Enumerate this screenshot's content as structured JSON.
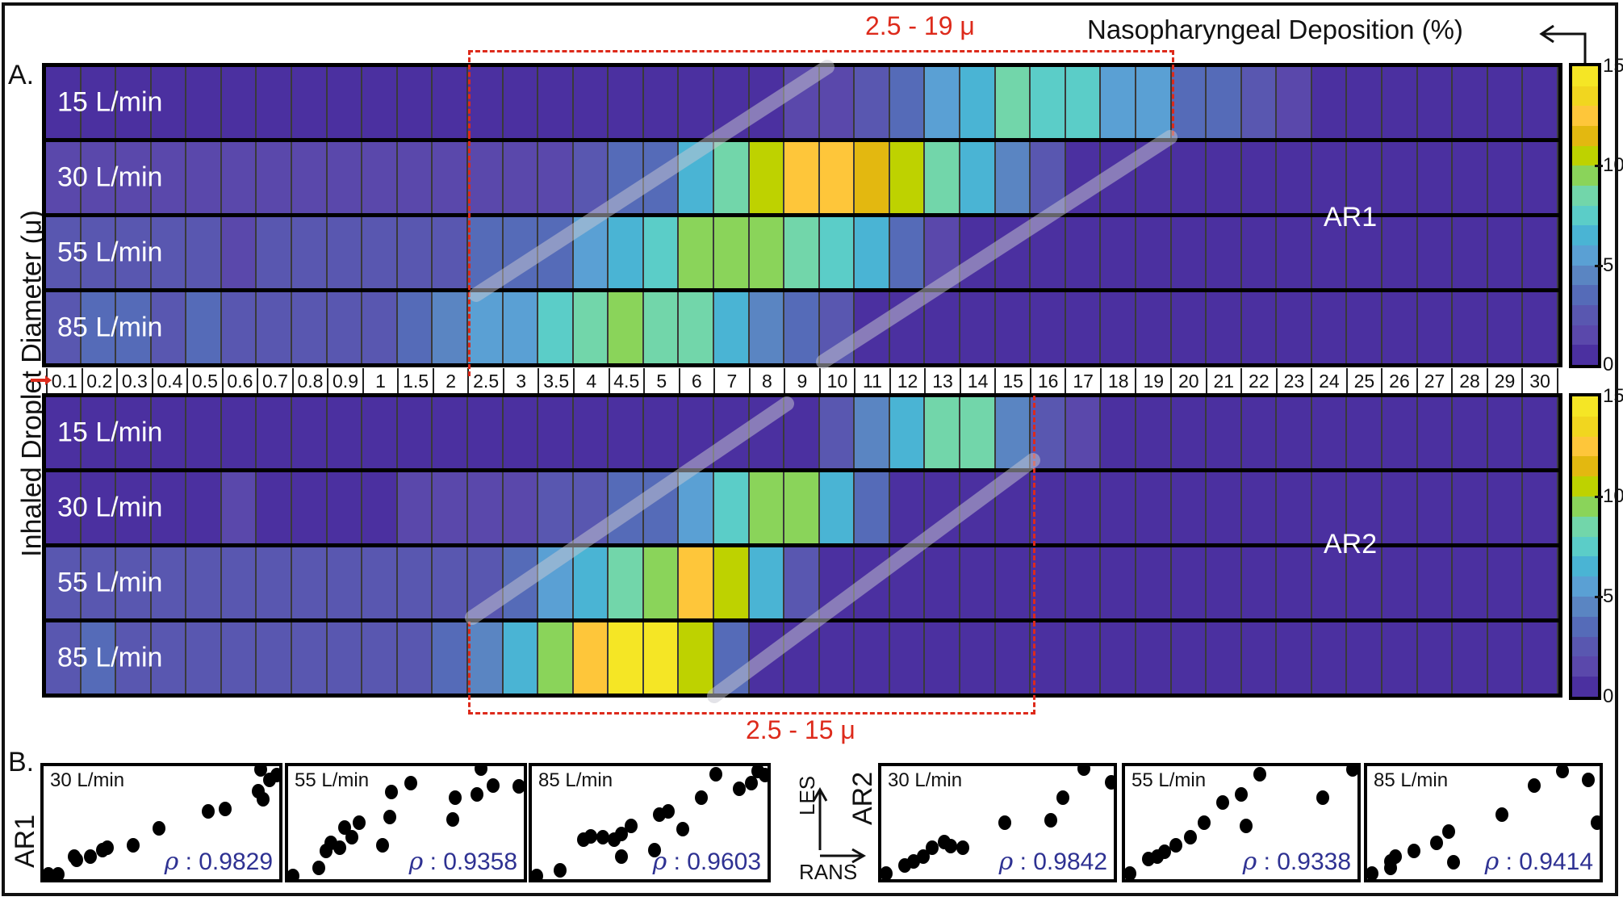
{
  "figure": {
    "panel_a_letter": "A.",
    "panel_b_letter": "B.",
    "y_axis_label": "Inhaled Droplet Diameter (μ)",
    "colorbar_title": "Nasopharyngeal Deposition (%)",
    "colorbar_ticks": [
      "0",
      "5",
      "10",
      "15"
    ],
    "range_ar1_label": "2.5 - 19 μ",
    "range_ar2_label": "2.5 - 15 μ",
    "ar1_label": "AR1",
    "ar2_label": "AR2",
    "axes_hint": {
      "y": "LES",
      "x": "RANS"
    },
    "b_row_labels": {
      "ar1": "AR1",
      "ar2": "AR2"
    }
  },
  "colormap": [
    "#4b30a0",
    "#5a48ab",
    "#5957b0",
    "#556bb8",
    "#5a85c2",
    "#5aa0d4",
    "#4ab4d4",
    "#5bcdc8",
    "#72d6aa",
    "#8ad45a",
    "#bed200",
    "#e3b810",
    "#fec63a",
    "#f1d61f",
    "#f5e625"
  ],
  "chart_data": [
    {
      "type": "heatmap",
      "title": "AR1 Nasopharyngeal Deposition (%)",
      "xlabel": "Inhaled Droplet Diameter (μ)",
      "colorbar": {
        "label": "Nasopharyngeal Deposition (%)",
        "range": [
          0,
          15
        ],
        "levels": 15
      },
      "x": [
        "0.1",
        "0.2",
        "0.3",
        "0.4",
        "0.5",
        "0.6",
        "0.7",
        "0.8",
        "0.9",
        "1",
        "1.5",
        "2",
        "2.5",
        "3",
        "3.5",
        "4",
        "4.5",
        "5",
        "6",
        "7",
        "8",
        "9",
        "10",
        "11",
        "12",
        "13",
        "14",
        "15",
        "16",
        "17",
        "18",
        "19",
        "20",
        "21",
        "22",
        "23",
        "24",
        "25",
        "26",
        "27",
        "28",
        "29",
        "30"
      ],
      "rows": [
        {
          "label": "15 L/min",
          "values": [
            0,
            0,
            0,
            0,
            0,
            0,
            0,
            0,
            0,
            0,
            0,
            0,
            0,
            0,
            0,
            0,
            0,
            0,
            0,
            0,
            0,
            1,
            1,
            2,
            3,
            5,
            6,
            8,
            7,
            7,
            5,
            5,
            3,
            3,
            2,
            1,
            0,
            0,
            0,
            0,
            0,
            0,
            0
          ]
        },
        {
          "label": "30 L/min",
          "values": [
            1,
            1,
            1,
            1,
            1,
            1,
            1,
            1,
            1,
            1,
            1,
            1,
            1,
            1,
            1,
            2,
            3,
            3,
            6,
            8,
            10,
            12,
            12,
            11,
            10,
            8,
            6,
            4,
            2,
            0,
            0,
            0,
            0,
            0,
            0,
            0,
            0,
            0,
            0,
            0,
            0,
            0,
            0
          ]
        },
        {
          "label": "55 L/min",
          "values": [
            2,
            2,
            2,
            2,
            2,
            1,
            2,
            2,
            2,
            2,
            2,
            2,
            3,
            3,
            3,
            5,
            6,
            7,
            9,
            9,
            9,
            8,
            7,
            6,
            3,
            1,
            0,
            0,
            0,
            0,
            0,
            0,
            0,
            0,
            0,
            0,
            0,
            0,
            0,
            0,
            0,
            0,
            0
          ]
        },
        {
          "label": "85 L/min",
          "values": [
            2,
            3,
            3,
            2,
            3,
            2,
            2,
            2,
            2,
            2,
            3,
            4,
            5,
            5,
            7,
            8,
            9,
            8,
            8,
            6,
            4,
            3,
            2,
            0,
            0,
            0,
            0,
            0,
            0,
            0,
            0,
            0,
            0,
            0,
            0,
            0,
            0,
            0,
            0,
            0,
            0,
            0,
            0
          ]
        }
      ],
      "highlight_range": "2.5 - 19 μ"
    },
    {
      "type": "heatmap",
      "title": "AR2 Nasopharyngeal Deposition (%)",
      "xlabel": "Inhaled Droplet Diameter (μ)",
      "colorbar": {
        "label": "Nasopharyngeal Deposition (%)",
        "range": [
          0,
          15
        ],
        "levels": 15
      },
      "x": [
        "0.1",
        "0.2",
        "0.3",
        "0.4",
        "0.5",
        "0.6",
        "0.7",
        "0.8",
        "0.9",
        "1",
        "1.5",
        "2",
        "2.5",
        "3",
        "3.5",
        "4",
        "4.5",
        "5",
        "6",
        "7",
        "8",
        "9",
        "10",
        "11",
        "12",
        "13",
        "14",
        "15",
        "16",
        "17",
        "18",
        "19",
        "20",
        "21",
        "22",
        "23",
        "24",
        "25",
        "26",
        "27",
        "28",
        "29",
        "30"
      ],
      "rows": [
        {
          "label": "15 L/min",
          "values": [
            0,
            0,
            0,
            0,
            0,
            0,
            0,
            0,
            0,
            0,
            0,
            0,
            0,
            0,
            0,
            0,
            0,
            0,
            0,
            0,
            0,
            0,
            2,
            4,
            6,
            8,
            8,
            4,
            2,
            1,
            0,
            0,
            0,
            0,
            0,
            0,
            0,
            0,
            0,
            0,
            0,
            0,
            0
          ]
        },
        {
          "label": "30 L/min",
          "values": [
            0,
            0,
            0,
            0,
            0,
            1,
            0,
            0,
            0,
            0,
            1,
            1,
            1,
            1,
            2,
            2,
            3,
            3,
            5,
            7,
            9,
            9,
            6,
            3,
            0,
            0,
            0,
            0,
            0,
            0,
            0,
            0,
            0,
            0,
            0,
            0,
            0,
            0,
            0,
            0,
            0,
            0,
            0
          ]
        },
        {
          "label": "55 L/min",
          "values": [
            2,
            2,
            2,
            2,
            2,
            2,
            2,
            2,
            2,
            2,
            2,
            2,
            2,
            3,
            5,
            6,
            8,
            9,
            12,
            10,
            6,
            2,
            0,
            0,
            0,
            0,
            0,
            0,
            0,
            0,
            0,
            0,
            0,
            0,
            0,
            0,
            0,
            0,
            0,
            0,
            0,
            0,
            0
          ]
        },
        {
          "label": "85 L/min",
          "values": [
            2,
            3,
            2,
            2,
            2,
            2,
            2,
            2,
            2,
            2,
            2,
            3,
            4,
            6,
            9,
            12,
            14,
            14,
            10,
            3,
            0,
            0,
            0,
            0,
            0,
            0,
            0,
            0,
            0,
            0,
            0,
            0,
            0,
            0,
            0,
            0,
            0,
            0,
            0,
            0,
            0,
            0,
            0
          ]
        }
      ],
      "highlight_range": "2.5 - 15 μ"
    },
    {
      "type": "scatter",
      "group": "AR1",
      "xlabel": "RANS",
      "ylabel": "LES",
      "panels": [
        {
          "title": "30  L/min",
          "rho": "0.9829",
          "points": [
            [
              0.02,
              0.04
            ],
            [
              0.06,
              0.04
            ],
            [
              0.13,
              0.2
            ],
            [
              0.14,
              0.17
            ],
            [
              0.2,
              0.2
            ],
            [
              0.25,
              0.26
            ],
            [
              0.27,
              0.28
            ],
            [
              0.38,
              0.3
            ],
            [
              0.49,
              0.45
            ],
            [
              0.7,
              0.6
            ],
            [
              0.77,
              0.62
            ],
            [
              0.91,
              0.78
            ],
            [
              0.93,
              0.71
            ],
            [
              0.96,
              0.88
            ],
            [
              0.92,
              0.97
            ],
            [
              0.99,
              0.92
            ]
          ]
        },
        {
          "title": "55  L/min",
          "rho": "0.9358",
          "points": [
            [
              0.02,
              0.03
            ],
            [
              0.13,
              0.1
            ],
            [
              0.16,
              0.25
            ],
            [
              0.18,
              0.32
            ],
            [
              0.22,
              0.28
            ],
            [
              0.24,
              0.46
            ],
            [
              0.27,
              0.37
            ],
            [
              0.3,
              0.5
            ],
            [
              0.4,
              0.3
            ],
            [
              0.43,
              0.55
            ],
            [
              0.44,
              0.77
            ],
            [
              0.52,
              0.85
            ],
            [
              0.7,
              0.53
            ],
            [
              0.71,
              0.72
            ],
            [
              0.8,
              0.75
            ],
            [
              0.87,
              0.83
            ],
            [
              0.82,
              0.98
            ],
            [
              0.98,
              0.82
            ]
          ]
        },
        {
          "title": "85  L/min",
          "rho": "0.9603",
          "points": [
            [
              0.02,
              0.03
            ],
            [
              0.12,
              0.08
            ],
            [
              0.22,
              0.35
            ],
            [
              0.25,
              0.38
            ],
            [
              0.3,
              0.37
            ],
            [
              0.35,
              0.35
            ],
            [
              0.38,
              0.4
            ],
            [
              0.42,
              0.47
            ],
            [
              0.38,
              0.2
            ],
            [
              0.52,
              0.26
            ],
            [
              0.54,
              0.57
            ],
            [
              0.58,
              0.6
            ],
            [
              0.64,
              0.44
            ],
            [
              0.72,
              0.72
            ],
            [
              0.78,
              0.93
            ],
            [
              0.88,
              0.8
            ],
            [
              0.93,
              0.85
            ],
            [
              0.96,
              0.96
            ],
            [
              0.99,
              0.92
            ]
          ]
        }
      ]
    },
    {
      "type": "scatter",
      "group": "AR2",
      "xlabel": "RANS",
      "ylabel": "LES",
      "panels": [
        {
          "title": "30  L/min",
          "rho": "0.9842",
          "points": [
            [
              0.02,
              0.05
            ],
            [
              0.1,
              0.12
            ],
            [
              0.14,
              0.16
            ],
            [
              0.18,
              0.2
            ],
            [
              0.22,
              0.28
            ],
            [
              0.27,
              0.33
            ],
            [
              0.3,
              0.29
            ],
            [
              0.35,
              0.28
            ],
            [
              0.53,
              0.5
            ],
            [
              0.73,
              0.52
            ],
            [
              0.78,
              0.72
            ],
            [
              0.87,
              0.98
            ],
            [
              0.99,
              0.86
            ]
          ]
        },
        {
          "title": "55  L/min",
          "rho": "0.9338",
          "points": [
            [
              0.02,
              0.05
            ],
            [
              0.1,
              0.18
            ],
            [
              0.14,
              0.2
            ],
            [
              0.17,
              0.24
            ],
            [
              0.22,
              0.3
            ],
            [
              0.28,
              0.37
            ],
            [
              0.34,
              0.5
            ],
            [
              0.42,
              0.68
            ],
            [
              0.5,
              0.75
            ],
            [
              0.52,
              0.47
            ],
            [
              0.58,
              0.93
            ],
            [
              0.85,
              0.72
            ],
            [
              0.98,
              0.97
            ]
          ]
        },
        {
          "title": "85  L/min",
          "rho": "0.9414",
          "points": [
            [
              0.02,
              0.05
            ],
            [
              0.1,
              0.1
            ],
            [
              0.1,
              0.16
            ],
            [
              0.12,
              0.2
            ],
            [
              0.2,
              0.25
            ],
            [
              0.3,
              0.32
            ],
            [
              0.35,
              0.42
            ],
            [
              0.37,
              0.15
            ],
            [
              0.58,
              0.57
            ],
            [
              0.72,
              0.83
            ],
            [
              0.84,
              0.96
            ],
            [
              0.95,
              0.88
            ],
            [
              0.99,
              0.5
            ]
          ]
        }
      ]
    }
  ]
}
